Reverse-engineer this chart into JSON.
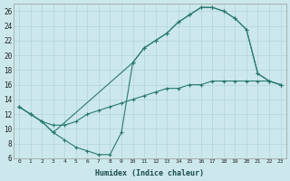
{
  "xlabel": "Humidex (Indice chaleur)",
  "background_color": "#cce8ec",
  "grid_color": "#b0d4d8",
  "line_color": "#2a7a6e",
  "xlim": [
    -0.5,
    23.5
  ],
  "ylim": [
    6,
    27
  ],
  "xticks": [
    0,
    1,
    2,
    3,
    4,
    5,
    6,
    7,
    8,
    9,
    10,
    11,
    12,
    13,
    14,
    15,
    16,
    17,
    18,
    19,
    20,
    21,
    22,
    23
  ],
  "yticks": [
    6,
    8,
    10,
    12,
    14,
    16,
    18,
    20,
    22,
    24,
    26
  ],
  "line1_x": [
    0,
    1,
    2,
    3,
    4,
    5,
    6,
    7,
    8,
    9,
    10,
    11,
    12,
    13,
    14,
    15,
    16,
    17,
    18,
    19,
    20,
    21,
    22,
    23
  ],
  "line1_y": [
    13,
    12,
    11,
    9.5,
    8.5,
    7.5,
    7.0,
    6.5,
    6.5,
    9.5,
    19,
    21,
    22,
    23,
    24.5,
    25.5,
    26.5,
    26.5,
    26,
    25,
    23.5,
    17.5,
    16.5,
    16
  ],
  "line2_x": [
    0,
    1,
    2,
    3,
    4,
    5,
    6,
    7,
    8,
    9,
    10,
    11,
    12,
    13,
    14,
    15,
    16,
    17,
    18,
    19,
    20,
    21,
    22,
    23
  ],
  "line2_y": [
    13,
    12,
    11,
    10.5,
    10.5,
    11,
    12,
    12.5,
    13,
    13.5,
    14,
    14.5,
    15,
    15.5,
    15.5,
    16,
    16,
    16.5,
    16.5,
    16.5,
    16.5,
    16.5,
    16.5,
    16
  ],
  "line3_x": [
    0,
    1,
    2,
    3,
    10,
    11,
    12,
    13,
    14,
    15,
    16,
    17,
    18,
    19,
    20,
    21,
    22,
    23
  ],
  "line3_y": [
    13,
    12,
    11,
    9.5,
    19,
    21,
    22,
    23,
    24.5,
    25.5,
    26.5,
    26.5,
    26,
    25,
    23.5,
    17.5,
    16.5,
    16
  ]
}
